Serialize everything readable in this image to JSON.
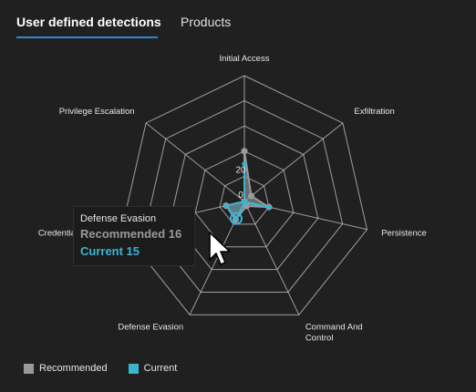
{
  "tabs": {
    "active": "User defined detections",
    "inactive": "Products"
  },
  "tooltip": {
    "title": "Defense Evasion",
    "recommended": "Recommended 16",
    "current": "Current 15"
  },
  "legend": {
    "recommended": "Recommended",
    "current": "Current"
  },
  "colors": {
    "recommended_fill": "#8a8a8a",
    "recommended_point": "#9a9a9a",
    "current": "#3ab4d3",
    "grid": "#c8c8c8",
    "tab_underline": "#2b88d8"
  },
  "chart_data": {
    "type": "radar",
    "categories": [
      "Initial Access",
      "Exfiltration",
      "Persistence",
      "Command And Control",
      "Defense Evasion",
      "Credential Access",
      "Privilege Escalation"
    ],
    "category_lines": [
      [
        "Initial Access"
      ],
      [
        "Exfiltration"
      ],
      [
        "Persistence"
      ],
      [
        "Command And",
        "Control"
      ],
      [
        "Defense Evasion"
      ],
      [
        "Credential Access"
      ],
      [
        "Privilege Escalation"
      ]
    ],
    "series": [
      {
        "name": "Recommended",
        "values": [
          40,
          7,
          20,
          4,
          16,
          15,
          0
        ]
      },
      {
        "name": "Current",
        "values": [
          30,
          0,
          20,
          1,
          15,
          15,
          0
        ]
      }
    ],
    "range": [
      0,
      100
    ],
    "tick_labels": [
      "0",
      "20"
    ],
    "tick_values": [
      0,
      20
    ],
    "legend_position": "bottom-left",
    "grid": true
  }
}
